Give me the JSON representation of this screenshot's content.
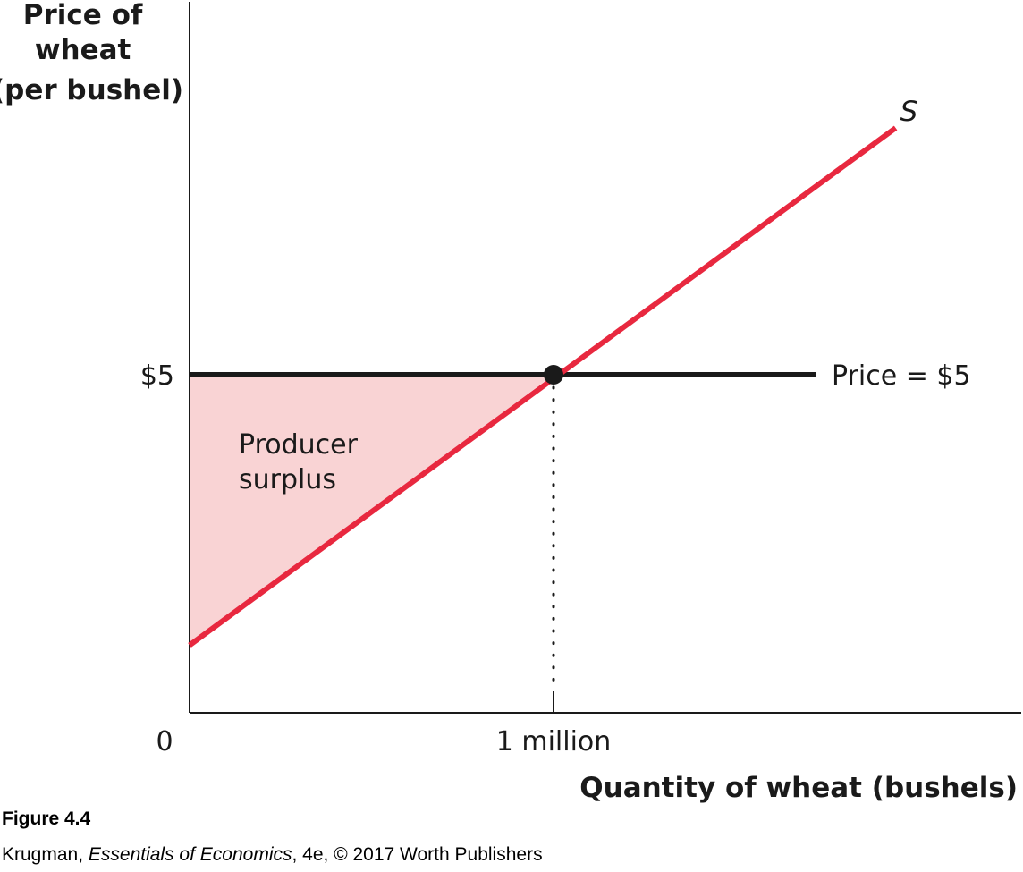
{
  "chart_data": {
    "type": "line",
    "ylabel_lines": [
      "Price of",
      "wheat",
      "(per bushel)"
    ],
    "xlabel": "Quantity of wheat (bushels)",
    "origin_label": "0",
    "xlim": [
      0,
      2.3
    ],
    "ylim": [
      0,
      10
    ],
    "x_ticks": [
      {
        "value": 1,
        "label": "1 million"
      }
    ],
    "y_ticks": [
      {
        "value": 5,
        "label": "$5"
      }
    ],
    "series": [
      {
        "name": "S",
        "color": "#e8283f",
        "points": [
          [
            0,
            1
          ],
          [
            1,
            5
          ],
          [
            1.94,
            8.65
          ]
        ]
      },
      {
        "name": "Price = $5",
        "color": "#1a1a1a",
        "points": [
          [
            0,
            5
          ],
          [
            1.72,
            5
          ]
        ]
      }
    ],
    "equilibrium": {
      "x": 1,
      "y": 5
    },
    "shaded_region": {
      "label_lines": [
        "Producer",
        "surplus"
      ],
      "color": "#f9d3d4",
      "points": [
        [
          0,
          5
        ],
        [
          1,
          5
        ],
        [
          0,
          1
        ]
      ]
    }
  },
  "figure": {
    "label": "Figure 4.4",
    "credit_author": "Krugman, ",
    "credit_title": "Essentials of Economics",
    "credit_rest": ", 4e, © 2017 Worth Publishers"
  }
}
